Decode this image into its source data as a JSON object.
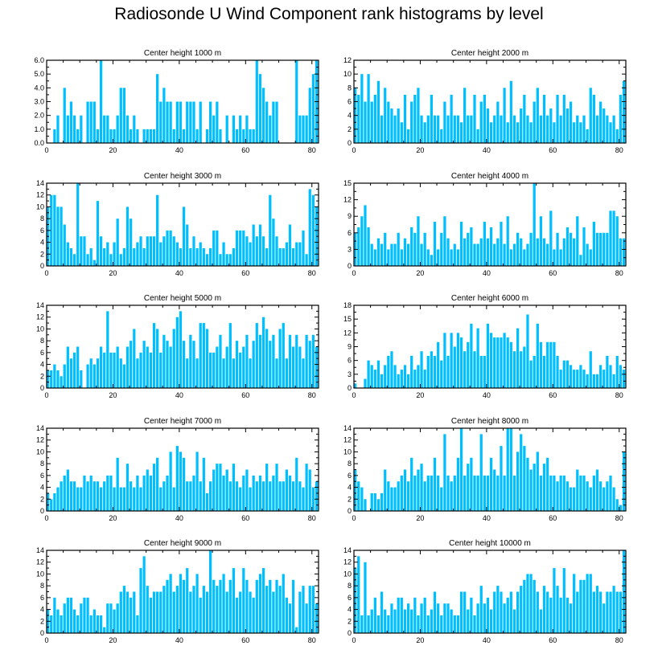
{
  "title": "Radiosonde U Wind Component rank histograms by level",
  "colors": {
    "bar": "#00bfff",
    "axis": "#000000",
    "background": "#ffffff"
  },
  "chart_data": [
    {
      "type": "bar",
      "title": "Center height 1000 m",
      "xlim": [
        0,
        82
      ],
      "ylim": [
        0,
        6
      ],
      "xticks": [
        0,
        20,
        40,
        60,
        80
      ],
      "yticks": [
        "0.0",
        "1.0",
        "2.0",
        "3.0",
        "4.0",
        "5.0",
        "6.0"
      ],
      "xlabel": "",
      "ylabel": "",
      "values": [
        0,
        0,
        1,
        2,
        0,
        4,
        2,
        3,
        2,
        1,
        2,
        0,
        3,
        3,
        3,
        1,
        6,
        2,
        2,
        1,
        1,
        2,
        4,
        4,
        2,
        1,
        2,
        1,
        0,
        1,
        1,
        1,
        1,
        5,
        3,
        4,
        3,
        3,
        1,
        3,
        3,
        1,
        3,
        3,
        3,
        1,
        3,
        0,
        1,
        3,
        2,
        3,
        1,
        0,
        2,
        0,
        2,
        1,
        2,
        1,
        2,
        1,
        1,
        6,
        5,
        4,
        3,
        2,
        3,
        3,
        0,
        0,
        0,
        0,
        0,
        6,
        2,
        2,
        2,
        4,
        5,
        6
      ]
    },
    {
      "type": "bar",
      "title": "Center height 2000 m",
      "xlim": [
        0,
        82
      ],
      "ylim": [
        0,
        12
      ],
      "xticks": [
        0,
        20,
        40,
        60,
        80
      ],
      "yticks": [
        "0",
        "2",
        "4",
        "6",
        "8",
        "10",
        "12"
      ],
      "xlabel": "",
      "ylabel": "",
      "values": [
        8,
        7,
        10,
        6,
        10,
        6,
        7,
        9,
        4,
        8,
        6,
        5,
        4,
        5,
        3,
        7,
        2,
        6,
        7,
        8,
        4,
        3,
        4,
        7,
        4,
        4,
        2,
        6,
        4,
        7,
        4,
        4,
        3,
        8,
        4,
        4,
        7,
        2,
        6,
        7,
        5,
        3,
        4,
        6,
        4,
        8,
        3,
        9,
        4,
        3,
        5,
        7,
        4,
        3,
        6,
        8,
        4,
        7,
        4,
        5,
        3,
        7,
        4,
        7,
        5,
        6,
        3,
        4,
        3,
        4,
        2,
        8,
        7,
        4,
        6,
        5,
        4,
        3,
        4,
        2,
        7,
        9
      ]
    },
    {
      "type": "bar",
      "title": "Center height 3000 m",
      "xlim": [
        0,
        82
      ],
      "ylim": [
        0,
        14
      ],
      "xticks": [
        0,
        20,
        40,
        60,
        80
      ],
      "yticks": [
        "0",
        "2",
        "4",
        "6",
        "8",
        "10",
        "12",
        "14"
      ],
      "xlabel": "",
      "ylabel": "",
      "values": [
        10,
        12,
        12,
        10,
        10,
        7,
        4,
        3,
        2,
        14,
        5,
        5,
        2,
        3,
        1,
        11,
        5,
        3,
        4,
        2,
        4,
        8,
        2,
        3,
        10,
        8,
        3,
        4,
        5,
        3,
        5,
        5,
        5,
        12,
        4,
        5,
        6,
        6,
        5,
        4,
        3,
        10,
        7,
        3,
        5,
        3,
        4,
        3,
        2,
        3,
        6,
        6,
        2,
        4,
        2,
        2,
        3,
        6,
        6,
        6,
        5,
        4,
        7,
        5,
        7,
        5,
        3,
        12,
        8,
        5,
        3,
        3,
        4,
        7,
        3,
        4,
        4,
        6,
        2,
        13,
        12,
        10
      ]
    },
    {
      "type": "bar",
      "title": "Center height 4000 m",
      "xlim": [
        0,
        82
      ],
      "ylim": [
        0,
        15
      ],
      "xticks": [
        0,
        20,
        40,
        60,
        80
      ],
      "yticks": [
        "0",
        "3",
        "6",
        "9",
        "12",
        "15"
      ],
      "xlabel": "",
      "ylabel": "",
      "values": [
        6,
        7,
        9,
        11,
        7,
        4,
        3,
        5,
        4,
        6,
        3,
        4,
        4,
        6,
        3,
        5,
        4,
        7,
        6,
        9,
        4,
        6,
        3,
        2,
        8,
        3,
        6,
        9,
        5,
        3,
        4,
        3,
        8,
        5,
        6,
        7,
        4,
        4,
        5,
        8,
        5,
        7,
        4,
        5,
        8,
        4,
        9,
        3,
        4,
        6,
        5,
        3,
        4,
        6,
        15,
        5,
        9,
        5,
        4,
        10,
        3,
        6,
        3,
        5,
        7,
        6,
        5,
        9,
        2,
        7,
        4,
        3,
        8,
        6,
        6,
        6,
        6,
        10,
        10,
        9,
        5,
        5
      ]
    },
    {
      "type": "bar",
      "title": "Center height 5000 m",
      "xlim": [
        0,
        82
      ],
      "ylim": [
        0,
        14
      ],
      "xticks": [
        0,
        20,
        40,
        60,
        80
      ],
      "yticks": [
        "0",
        "2",
        "4",
        "6",
        "8",
        "10",
        "12",
        "14"
      ],
      "xlabel": "",
      "ylabel": "",
      "values": [
        3,
        3,
        4,
        3,
        2,
        4,
        7,
        5,
        6,
        7,
        3,
        0,
        4,
        5,
        4,
        5,
        7,
        6,
        13,
        6,
        6,
        7,
        5,
        4,
        7,
        8,
        10,
        5,
        6,
        8,
        7,
        6,
        11,
        10,
        6,
        9,
        8,
        7,
        10,
        12,
        13,
        8,
        5,
        9,
        8,
        5,
        11,
        11,
        10,
        6,
        6,
        7,
        9,
        5,
        7,
        11,
        5,
        8,
        6,
        7,
        9,
        5,
        8,
        11,
        9,
        12,
        10,
        8,
        9,
        5,
        10,
        11,
        5,
        9,
        7,
        9,
        7,
        5,
        9,
        8,
        9,
        7
      ]
    },
    {
      "type": "bar",
      "title": "Center height 6000 m",
      "xlim": [
        0,
        82
      ],
      "ylim": [
        0,
        18
      ],
      "xticks": [
        0,
        20,
        40,
        60,
        80
      ],
      "yticks": [
        "0",
        "3",
        "6",
        "9",
        "12",
        "15",
        "18"
      ],
      "xlabel": "",
      "ylabel": "",
      "values": [
        1,
        0,
        0,
        2,
        6,
        5,
        4,
        6,
        3,
        5,
        7,
        8,
        5,
        3,
        4,
        5,
        3,
        7,
        4,
        5,
        8,
        4,
        7,
        8,
        7,
        10,
        6,
        12,
        7,
        12,
        9,
        12,
        11,
        8,
        10,
        14,
        8,
        13,
        7,
        7,
        14,
        12,
        11,
        11,
        11,
        12,
        11,
        10,
        8,
        13,
        8,
        9,
        16,
        6,
        7,
        14,
        10,
        7,
        10,
        10,
        10,
        7,
        4,
        6,
        6,
        5,
        4,
        4,
        5,
        4,
        3,
        8,
        3,
        3,
        5,
        4,
        7,
        5,
        3,
        7,
        5,
        4
      ]
    },
    {
      "type": "bar",
      "title": "Center height 7000 m",
      "xlim": [
        0,
        82
      ],
      "ylim": [
        0,
        14
      ],
      "xticks": [
        0,
        20,
        40,
        60,
        80
      ],
      "yticks": [
        "0",
        "2",
        "4",
        "6",
        "8",
        "10",
        "12",
        "14"
      ],
      "xlabel": "",
      "ylabel": "",
      "values": [
        3,
        2,
        3,
        4,
        5,
        6,
        7,
        5,
        5,
        4,
        4,
        6,
        5,
        6,
        5,
        5,
        4,
        5,
        6,
        6,
        4,
        9,
        4,
        4,
        8,
        5,
        4,
        6,
        4,
        6,
        7,
        6,
        8,
        9,
        4,
        5,
        6,
        10,
        4,
        11,
        10,
        9,
        5,
        5,
        6,
        10,
        5,
        9,
        3,
        5,
        7,
        8,
        8,
        6,
        7,
        5,
        8,
        5,
        4,
        6,
        7,
        4,
        6,
        5,
        6,
        5,
        8,
        5,
        6,
        8,
        5,
        5,
        7,
        6,
        5,
        9,
        5,
        4,
        8,
        7,
        4,
        5
      ]
    },
    {
      "type": "bar",
      "title": "Center height 8000 m",
      "xlim": [
        0,
        82
      ],
      "ylim": [
        0,
        14
      ],
      "xticks": [
        0,
        20,
        40,
        60,
        80
      ],
      "yticks": [
        "0",
        "2",
        "4",
        "6",
        "8",
        "10",
        "12",
        "14"
      ],
      "xlabel": "",
      "ylabel": "",
      "values": [
        7,
        5,
        4,
        2,
        0,
        3,
        3,
        2,
        3,
        7,
        5,
        4,
        4,
        5,
        6,
        7,
        5,
        9,
        6,
        7,
        8,
        5,
        6,
        6,
        9,
        6,
        4,
        13,
        6,
        5,
        6,
        9,
        14,
        6,
        8,
        9,
        6,
        6,
        13,
        6,
        6,
        9,
        7,
        6,
        11,
        6,
        14,
        14,
        6,
        10,
        13,
        11,
        9,
        7,
        8,
        10,
        6,
        8,
        9,
        6,
        6,
        5,
        6,
        6,
        5,
        4,
        4,
        7,
        6,
        6,
        5,
        4,
        6,
        7,
        5,
        4,
        5,
        6,
        4,
        2,
        1,
        10
      ]
    },
    {
      "type": "bar",
      "title": "Center height 9000 m",
      "xlim": [
        0,
        82
      ],
      "ylim": [
        0,
        14
      ],
      "xticks": [
        0,
        20,
        40,
        60,
        80
      ],
      "yticks": [
        "0",
        "2",
        "4",
        "6",
        "8",
        "10",
        "12",
        "14"
      ],
      "xlabel": "",
      "ylabel": "",
      "values": [
        4,
        3,
        6,
        4,
        3,
        5,
        6,
        6,
        4,
        3,
        5,
        6,
        6,
        3,
        4,
        3,
        3,
        1,
        5,
        5,
        4,
        5,
        7,
        8,
        7,
        6,
        7,
        3,
        11,
        13,
        8,
        6,
        7,
        7,
        7,
        8,
        9,
        10,
        7,
        8,
        10,
        9,
        11,
        7,
        8,
        10,
        6,
        8,
        7,
        14,
        9,
        8,
        9,
        10,
        7,
        9,
        11,
        6,
        7,
        11,
        9,
        7,
        6,
        9,
        10,
        11,
        8,
        9,
        7,
        9,
        8,
        10,
        6,
        5,
        9,
        1,
        7,
        8,
        5,
        8,
        8,
        5
      ]
    },
    {
      "type": "bar",
      "title": "Center height 10000 m",
      "xlim": [
        0,
        82
      ],
      "ylim": [
        0,
        14
      ],
      "xticks": [
        0,
        20,
        40,
        60,
        80
      ],
      "yticks": [
        "0",
        "2",
        "4",
        "6",
        "8",
        "10",
        "12",
        "14"
      ],
      "xlabel": "",
      "ylabel": "",
      "values": [
        11,
        13,
        3,
        12,
        3,
        4,
        6,
        3,
        7,
        4,
        3,
        5,
        4,
        6,
        6,
        4,
        5,
        4,
        6,
        3,
        5,
        6,
        3,
        4,
        7,
        5,
        3,
        5,
        5,
        4,
        3,
        3,
        7,
        7,
        4,
        6,
        3,
        5,
        8,
        5,
        6,
        4,
        7,
        8,
        7,
        5,
        6,
        7,
        4,
        7,
        8,
        9,
        10,
        10,
        9,
        7,
        4,
        8,
        7,
        6,
        11,
        8,
        6,
        11,
        6,
        5,
        10,
        7,
        9,
        9,
        10,
        10,
        7,
        8,
        7,
        5,
        7,
        7,
        8,
        7,
        7,
        14
      ]
    }
  ]
}
